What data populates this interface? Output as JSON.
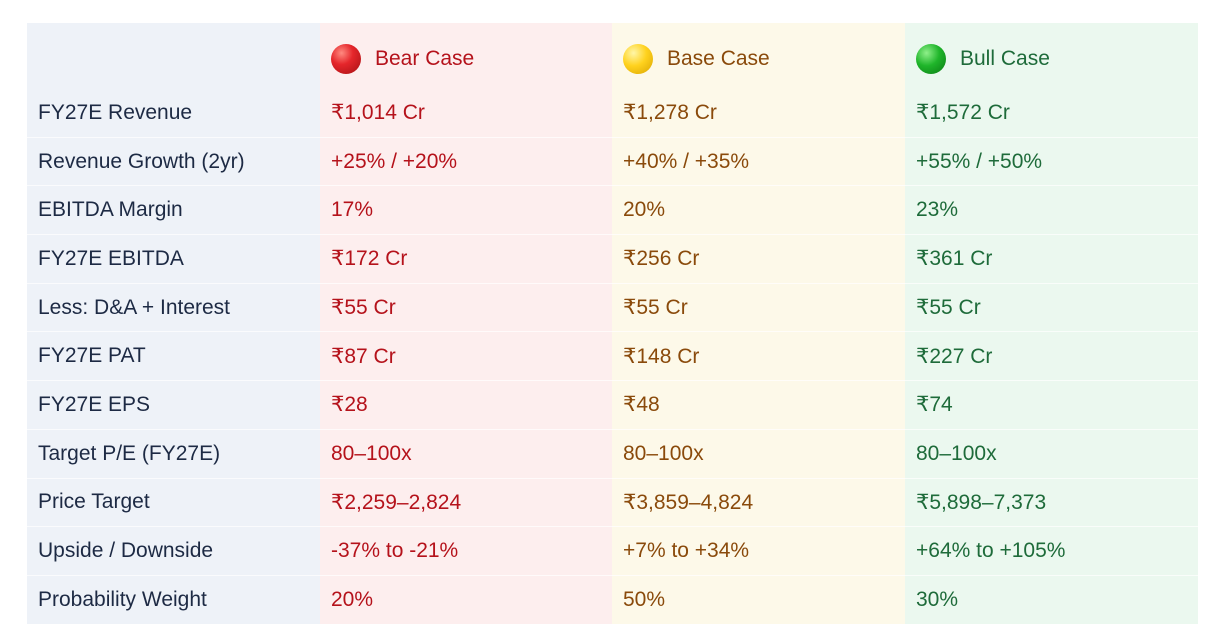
{
  "header": {
    "corner": "",
    "bear": {
      "label": "Bear Case",
      "icon": "red-circle-icon",
      "color": "#b5121b"
    },
    "base": {
      "label": "Base Case",
      "icon": "yellow-circle-icon",
      "color": "#8a4a0b"
    },
    "bull": {
      "label": "Bull Case",
      "icon": "green-circle-icon",
      "color": "#1e6b3a"
    }
  },
  "rows": [
    {
      "label": "FY27E Revenue",
      "bear": "₹1,014 Cr",
      "base": "₹1,278 Cr",
      "bull": "₹1,572 Cr"
    },
    {
      "label": "Revenue Growth (2yr)",
      "bear": "+25% / +20%",
      "base": "+40% / +35%",
      "bull": "+55% / +50%"
    },
    {
      "label": "EBITDA Margin",
      "bear": "17%",
      "base": "20%",
      "bull": "23%"
    },
    {
      "label": "FY27E EBITDA",
      "bear": "₹172 Cr",
      "base": "₹256 Cr",
      "bull": "₹361 Cr"
    },
    {
      "label": "Less: D&A + Interest",
      "bear": "₹55 Cr",
      "base": "₹55 Cr",
      "bull": "₹55 Cr"
    },
    {
      "label": "FY27E PAT",
      "bear": "₹87 Cr",
      "base": "₹148 Cr",
      "bull": "₹227 Cr"
    },
    {
      "label": "FY27E EPS",
      "bear": "₹28",
      "base": "₹48",
      "bull": "₹74"
    },
    {
      "label": "Target P/E (FY27E)",
      "bear": "80–100x",
      "base": "80–100x",
      "bull": "80–100x"
    },
    {
      "label": "Price Target",
      "bear": "₹2,259–2,824",
      "base": "₹3,859–4,824",
      "bull": "₹5,898–7,373"
    },
    {
      "label": "Upside / Downside",
      "bear": "-37% to -21%",
      "base": "+7% to +34%",
      "bull": "+64% to +105%"
    },
    {
      "label": "Probability Weight",
      "bear": "20%",
      "base": "50%",
      "bull": "30%"
    }
  ]
}
